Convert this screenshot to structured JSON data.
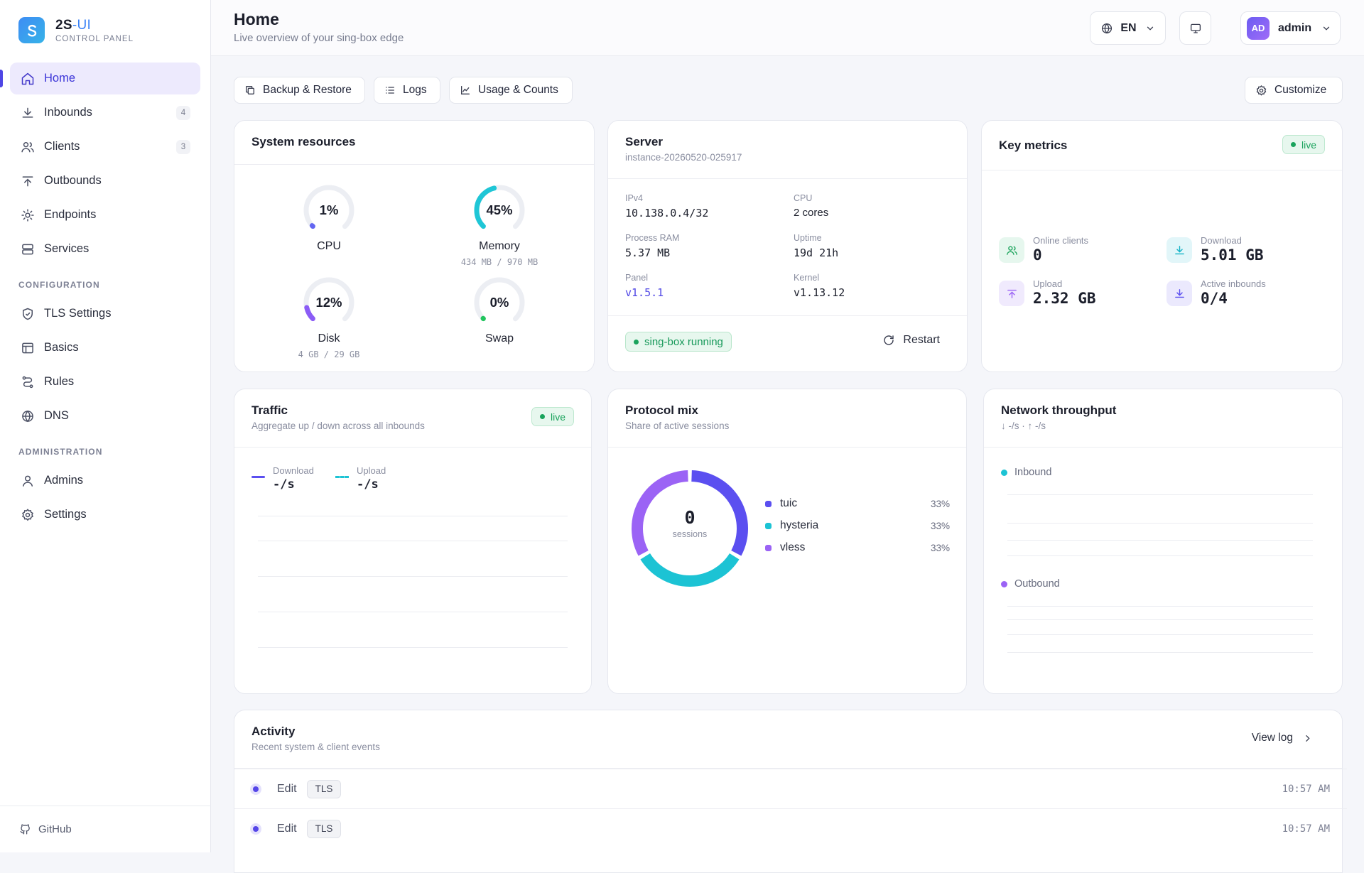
{
  "brand": {
    "name": "2S",
    "name_suffix": "-UI",
    "subtitle": "CONTROL PANEL"
  },
  "sidebar": {
    "items": [
      {
        "label": "Home",
        "active": true
      },
      {
        "label": "Inbounds",
        "count": "4"
      },
      {
        "label": "Clients",
        "count": "3"
      },
      {
        "label": "Outbounds"
      },
      {
        "label": "Endpoints"
      },
      {
        "label": "Services"
      }
    ],
    "config_heading": "CONFIGURATION",
    "config_items": [
      {
        "label": "TLS Settings"
      },
      {
        "label": "Basics"
      },
      {
        "label": "Rules"
      },
      {
        "label": "DNS"
      }
    ],
    "admin_heading": "ADMINISTRATION",
    "admin_items": [
      {
        "label": "Admins"
      },
      {
        "label": "Settings"
      }
    ],
    "footer_link": "GitHub"
  },
  "header": {
    "title": "Home",
    "subtitle": "Live overview of your sing-box edge",
    "language": "EN",
    "user_initials": "AD",
    "user_name": "admin"
  },
  "toolbar": {
    "backup": "Backup & Restore",
    "logs": "Logs",
    "usage": "Usage & Counts",
    "customize": "Customize"
  },
  "system": {
    "title": "System resources",
    "gauges": [
      {
        "label": "CPU",
        "value": "1%",
        "percent": 1,
        "color": "#6366f1",
        "detail": ""
      },
      {
        "label": "Memory",
        "value": "45%",
        "percent": 45,
        "color": "#1fc6d6",
        "detail": "434 MB / 970 MB"
      },
      {
        "label": "Disk",
        "value": "12%",
        "percent": 12,
        "color": "#8b5cf6",
        "detail": "4 GB / 29 GB"
      },
      {
        "label": "Swap",
        "value": "0%",
        "percent": 0,
        "color": "#22c55e",
        "detail": ""
      }
    ]
  },
  "server": {
    "title": "Server",
    "instance": "instance-20260520-025917",
    "ipv4_label": "IPv4",
    "ipv4": "10.138.0.4/32",
    "cpu_label": "CPU",
    "cpu": "2 cores",
    "ram_label": "Process RAM",
    "ram": "5.37 MB",
    "uptime_label": "Uptime",
    "uptime": "19d 21h",
    "panel_label": "Panel",
    "panel": "v1.5.1",
    "kernel_label": "Kernel",
    "kernel": "v1.13.12",
    "status": "sing-box running",
    "restart": "Restart"
  },
  "metrics": {
    "title": "Key metrics",
    "live": "live",
    "online_label": "Online clients",
    "online": "0",
    "download_label": "Download",
    "download": "5.01 GB",
    "upload_label": "Upload",
    "upload": "2.32 GB",
    "active_label": "Active inbounds",
    "active": "0/4"
  },
  "traffic": {
    "title": "Traffic",
    "subtitle": "Aggregate up / down across all inbounds",
    "live": "live",
    "download_label": "Download",
    "download": "-/s",
    "upload_label": "Upload",
    "upload": "-/s"
  },
  "protocol": {
    "title": "Protocol mix",
    "subtitle": "Share of active sessions",
    "center_value": "0",
    "center_label": "sessions",
    "items": [
      {
        "name": "tuic",
        "pct": "33%",
        "value": 33.3,
        "color": "#5b4ff0"
      },
      {
        "name": "hysteria",
        "pct": "33%",
        "value": 33.3,
        "color": "#1cc3d4"
      },
      {
        "name": "vless",
        "pct": "33%",
        "value": 33.3,
        "color": "#9b63f5"
      }
    ]
  },
  "network": {
    "title": "Network throughput",
    "subtitle": "↓ -/s · ↑ -/s",
    "inbound": "Inbound",
    "outbound": "Outbound",
    "inbound_color": "#1cc3d4",
    "outbound_color": "#9b63f5"
  },
  "activity": {
    "title": "Activity",
    "subtitle": "Recent system & client events",
    "view_log": "View log",
    "rows": [
      {
        "verb": "Edit",
        "tag": "TLS",
        "time": "10:57 AM"
      },
      {
        "verb": "Edit",
        "tag": "TLS",
        "time": "10:57 AM"
      }
    ]
  }
}
